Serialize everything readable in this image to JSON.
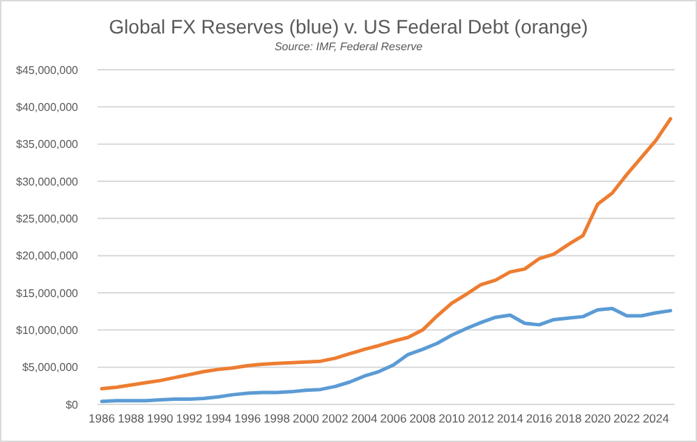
{
  "chart_data": {
    "type": "line",
    "title": "Global FX Reserves (blue) v. US Federal Debt (orange)",
    "subtitle": "Source: IMF, Federal Reserve",
    "categories": [
      "1986",
      null,
      "1988",
      null,
      "1990",
      null,
      "1992",
      null,
      "1994",
      null,
      "1996",
      null,
      "1998",
      null,
      "2000",
      null,
      "2002",
      null,
      "2004",
      null,
      "2006",
      null,
      "2008",
      null,
      "2010",
      null,
      "2012",
      null,
      "2014",
      null,
      "2016",
      null,
      "2018",
      null,
      "2020",
      null,
      "2022",
      null,
      "2024",
      null
    ],
    "series": [
      {
        "color": "#ed7d31",
        "values": [
          2100000,
          2300000,
          2600000,
          2900000,
          3200000,
          3600000,
          4000000,
          4400000,
          4700000,
          4900000,
          5200000,
          5400000,
          5500000,
          5600000,
          5700000,
          5800000,
          6200000,
          6800000,
          7400000,
          7900000,
          8500000,
          9000000,
          10000000,
          11900000,
          13600000,
          14800000,
          16100000,
          16700000,
          17800000,
          18200000,
          19600000,
          20200000,
          21500000,
          22700000,
          26900000,
          28400000,
          30900000,
          33200000,
          35500000,
          38400000
        ]
      },
      {
        "color": "#5b9bd5",
        "values": [
          400000,
          500000,
          500000,
          500000,
          600000,
          700000,
          700000,
          800000,
          1000000,
          1300000,
          1500000,
          1600000,
          1600000,
          1700000,
          1900000,
          2000000,
          2400000,
          3000000,
          3800000,
          4400000,
          5300000,
          6700000,
          7400000,
          8200000,
          9300000,
          10200000,
          11000000,
          11700000,
          12000000,
          10900000,
          10700000,
          11400000,
          11600000,
          11800000,
          12700000,
          12900000,
          11900000,
          11900000,
          12300000,
          12600000
        ]
      }
    ],
    "ylim": [
      0,
      45000000
    ],
    "yticks": [
      {
        "value": 0,
        "label": "$0"
      },
      {
        "value": 5000000,
        "label": "$5,000,000"
      },
      {
        "value": 10000000,
        "label": "$10,000,000"
      },
      {
        "value": 15000000,
        "label": "$15,000,000"
      },
      {
        "value": 20000000,
        "label": "$20,000,000"
      },
      {
        "value": 25000000,
        "label": "$25,000,000"
      },
      {
        "value": 30000000,
        "label": "$30,000,000"
      },
      {
        "value": 35000000,
        "label": "$35,000,000"
      },
      {
        "value": 40000000,
        "label": "$40,000,000"
      },
      {
        "value": 45000000,
        "label": "$45,000,000"
      }
    ],
    "grid": "y",
    "marker": "none",
    "line_style": "solid"
  }
}
